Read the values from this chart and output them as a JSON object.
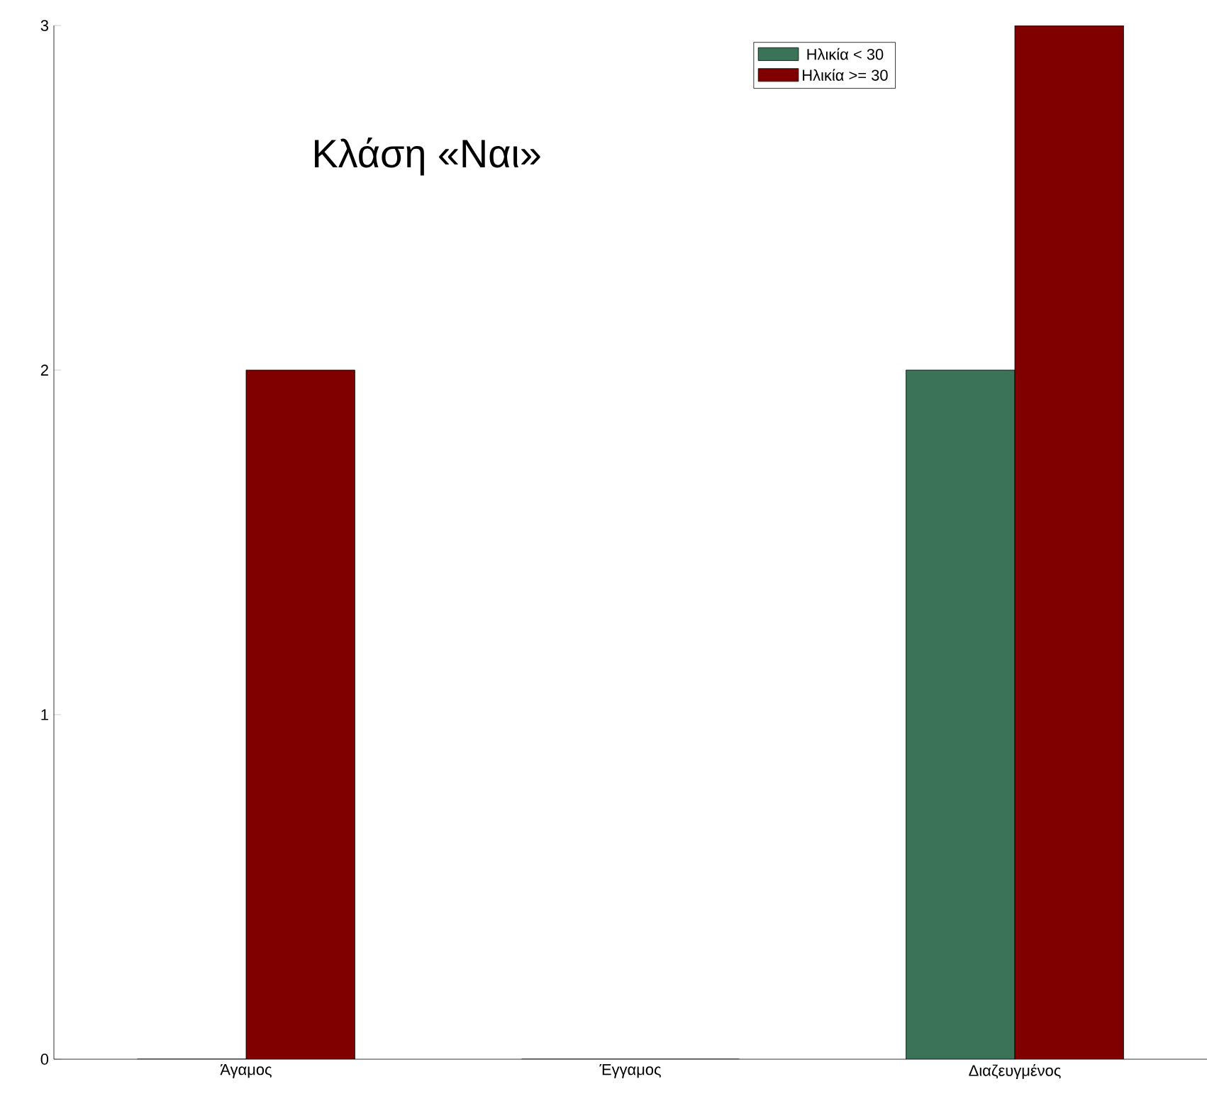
{
  "chart_data": {
    "type": "bar",
    "title": "Κλάση «Ναι»",
    "categories": [
      "Άγαμος",
      "Έγγαμος",
      "Διαζευγμένος"
    ],
    "series": [
      {
        "name": "Ηλικία < 30",
        "color": "#3b7358",
        "values": [
          0,
          0,
          2
        ]
      },
      {
        "name": "Ηλικία >= 30",
        "color": "#800000",
        "values": [
          2,
          0,
          3
        ]
      }
    ],
    "ylim": [
      0,
      3
    ],
    "yticks": [
      0,
      1,
      2,
      3
    ],
    "legend": "top right"
  }
}
